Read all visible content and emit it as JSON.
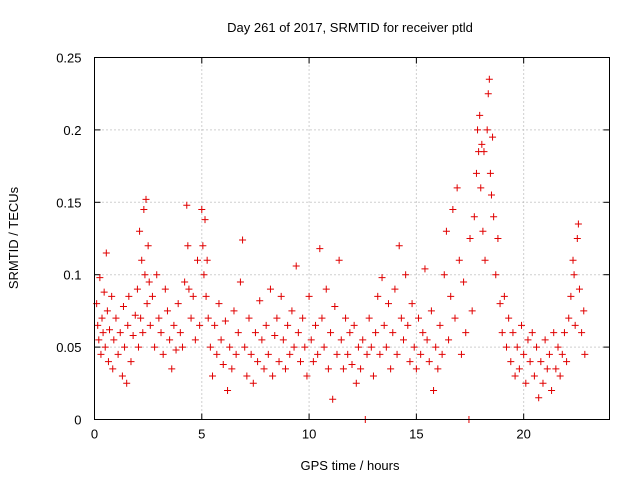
{
  "chart_data": {
    "type": "scatter",
    "title": "Day 261 of 2017, SRMTID for receiver ptld",
    "xlabel": "GPS time / hours",
    "ylabel": "SRMTID / TECUs",
    "xlim": [
      0,
      24
    ],
    "ylim": [
      0,
      0.25
    ],
    "xticks": [
      "0",
      "5",
      "10",
      "15",
      "20"
    ],
    "yticks": [
      "0",
      "0.05",
      "0.1",
      "0.15",
      "0.2",
      "0.25"
    ],
    "grid": true,
    "marker": "plus",
    "color": "#e00000",
    "series": [
      {
        "points": [
          [
            0.1,
            0.08
          ],
          [
            0.15,
            0.065
          ],
          [
            0.2,
            0.055
          ],
          [
            0.25,
            0.098
          ],
          [
            0.3,
            0.045
          ],
          [
            0.35,
            0.07
          ],
          [
            0.4,
            0.06
          ],
          [
            0.45,
            0.088
          ],
          [
            0.5,
            0.05
          ],
          [
            0.55,
            0.115
          ],
          [
            0.6,
            0.075
          ],
          [
            0.65,
            0.04
          ],
          [
            0.7,
            0.062
          ],
          [
            0.8,
            0.085
          ],
          [
            0.85,
            0.035
          ],
          [
            0.9,
            0.055
          ],
          [
            1.0,
            0.07
          ],
          [
            1.1,
            0.045
          ],
          [
            1.2,
            0.06
          ],
          [
            1.3,
            0.03
          ],
          [
            1.35,
            0.078
          ],
          [
            1.4,
            0.05
          ],
          [
            1.5,
            0.025
          ],
          [
            1.55,
            0.065
          ],
          [
            1.6,
            0.085
          ],
          [
            1.7,
            0.04
          ],
          [
            1.8,
            0.058
          ],
          [
            1.9,
            0.072
          ],
          [
            2.0,
            0.09
          ],
          [
            2.05,
            0.05
          ],
          [
            2.1,
            0.13
          ],
          [
            2.15,
            0.07
          ],
          [
            2.2,
            0.11
          ],
          [
            2.25,
            0.06
          ],
          [
            2.3,
            0.145
          ],
          [
            2.35,
            0.1
          ],
          [
            2.4,
            0.152
          ],
          [
            2.45,
            0.08
          ],
          [
            2.5,
            0.12
          ],
          [
            2.55,
            0.095
          ],
          [
            2.6,
            0.065
          ],
          [
            2.7,
            0.085
          ],
          [
            2.8,
            0.05
          ],
          [
            2.9,
            0.1
          ],
          [
            3.0,
            0.07
          ],
          [
            3.1,
            0.06
          ],
          [
            3.2,
            0.045
          ],
          [
            3.3,
            0.09
          ],
          [
            3.4,
            0.075
          ],
          [
            3.5,
            0.055
          ],
          [
            3.6,
            0.035
          ],
          [
            3.7,
            0.065
          ],
          [
            3.8,
            0.048
          ],
          [
            3.9,
            0.08
          ],
          [
            4.0,
            0.06
          ],
          [
            4.1,
            0.05
          ],
          [
            4.2,
            0.095
          ],
          [
            4.3,
            0.148
          ],
          [
            4.35,
            0.12
          ],
          [
            4.4,
            0.09
          ],
          [
            4.5,
            0.07
          ],
          [
            4.6,
            0.085
          ],
          [
            4.7,
            0.055
          ],
          [
            4.8,
            0.11
          ],
          [
            4.9,
            0.065
          ],
          [
            5.0,
            0.145
          ],
          [
            5.05,
            0.12
          ],
          [
            5.1,
            0.1
          ],
          [
            5.15,
            0.138
          ],
          [
            5.2,
            0.085
          ],
          [
            5.25,
            0.11
          ],
          [
            5.3,
            0.07
          ],
          [
            5.4,
            0.05
          ],
          [
            5.5,
            0.03
          ],
          [
            5.6,
            0.065
          ],
          [
            5.7,
            0.045
          ],
          [
            5.8,
            0.08
          ],
          [
            5.9,
            0.055
          ],
          [
            6.0,
            0.038
          ],
          [
            6.1,
            0.068
          ],
          [
            6.2,
            0.02
          ],
          [
            6.3,
            0.05
          ],
          [
            6.4,
            0.035
          ],
          [
            6.5,
            0.075
          ],
          [
            6.6,
            0.045
          ],
          [
            6.7,
            0.06
          ],
          [
            6.8,
            0.095
          ],
          [
            6.9,
            0.124
          ],
          [
            7.0,
            0.05
          ],
          [
            7.1,
            0.03
          ],
          [
            7.2,
            0.07
          ],
          [
            7.3,
            0.045
          ],
          [
            7.4,
            0.025
          ],
          [
            7.5,
            0.06
          ],
          [
            7.6,
            0.04
          ],
          [
            7.7,
            0.082
          ],
          [
            7.8,
            0.055
          ],
          [
            7.9,
            0.035
          ],
          [
            8.0,
            0.065
          ],
          [
            8.1,
            0.045
          ],
          [
            8.2,
            0.09
          ],
          [
            8.3,
            0.03
          ],
          [
            8.4,
            0.058
          ],
          [
            8.5,
            0.07
          ],
          [
            8.6,
            0.04
          ],
          [
            8.7,
            0.085
          ],
          [
            8.8,
            0.055
          ],
          [
            8.9,
            0.035
          ],
          [
            9.0,
            0.065
          ],
          [
            9.1,
            0.045
          ],
          [
            9.2,
            0.075
          ],
          [
            9.3,
            0.05
          ],
          [
            9.4,
            0.106
          ],
          [
            9.5,
            0.06
          ],
          [
            9.6,
            0.04
          ],
          [
            9.7,
            0.07
          ],
          [
            9.8,
            0.05
          ],
          [
            9.9,
            0.03
          ],
          [
            10.0,
            0.085
          ],
          [
            10.1,
            0.055
          ],
          [
            10.2,
            0.04
          ],
          [
            10.3,
            0.065
          ],
          [
            10.4,
            0.045
          ],
          [
            10.5,
            0.118
          ],
          [
            10.6,
            0.07
          ],
          [
            10.7,
            0.05
          ],
          [
            10.8,
            0.09
          ],
          [
            10.9,
            0.035
          ],
          [
            11.0,
            0.06
          ],
          [
            11.1,
            0.014
          ],
          [
            11.2,
            0.078
          ],
          [
            11.3,
            0.045
          ],
          [
            11.4,
            0.11
          ],
          [
            11.5,
            0.055
          ],
          [
            11.6,
            0.035
          ],
          [
            11.7,
            0.07
          ],
          [
            11.8,
            0.045
          ],
          [
            11.9,
            0.06
          ],
          [
            12.0,
            0.038
          ],
          [
            12.1,
            0.065
          ],
          [
            12.2,
            0.025
          ],
          [
            12.3,
            0.05
          ],
          [
            12.4,
            0.035
          ],
          [
            12.5,
            0.055
          ],
          [
            12.62,
            0.0
          ],
          [
            12.7,
            0.045
          ],
          [
            12.8,
            0.07
          ],
          [
            12.9,
            0.05
          ],
          [
            13.0,
            0.03
          ],
          [
            13.1,
            0.06
          ],
          [
            13.2,
            0.085
          ],
          [
            13.3,
            0.045
          ],
          [
            13.4,
            0.098
          ],
          [
            13.5,
            0.065
          ],
          [
            13.6,
            0.05
          ],
          [
            13.7,
            0.08
          ],
          [
            13.8,
            0.035
          ],
          [
            13.9,
            0.06
          ],
          [
            14.0,
            0.09
          ],
          [
            14.1,
            0.045
          ],
          [
            14.2,
            0.12
          ],
          [
            14.3,
            0.07
          ],
          [
            14.4,
            0.055
          ],
          [
            14.5,
            0.1
          ],
          [
            14.6,
            0.065
          ],
          [
            14.7,
            0.04
          ],
          [
            14.8,
            0.08
          ],
          [
            14.9,
            0.05
          ],
          [
            15.0,
            0.035
          ],
          [
            15.1,
            0.07
          ],
          [
            15.2,
            0.045
          ],
          [
            15.3,
            0.06
          ],
          [
            15.4,
            0.104
          ],
          [
            15.5,
            0.055
          ],
          [
            15.6,
            0.04
          ],
          [
            15.7,
            0.075
          ],
          [
            15.8,
            0.02
          ],
          [
            15.9,
            0.05
          ],
          [
            16.0,
            0.035
          ],
          [
            16.1,
            0.065
          ],
          [
            16.2,
            0.045
          ],
          [
            16.3,
            0.1
          ],
          [
            16.4,
            0.13
          ],
          [
            16.5,
            0.055
          ],
          [
            16.6,
            0.085
          ],
          [
            16.7,
            0.145
          ],
          [
            16.8,
            0.07
          ],
          [
            16.9,
            0.16
          ],
          [
            17.0,
            0.11
          ],
          [
            17.1,
            0.045
          ],
          [
            17.2,
            0.095
          ],
          [
            17.3,
            0.06
          ],
          [
            17.45,
            0.0
          ],
          [
            17.5,
            0.125
          ],
          [
            17.6,
            0.075
          ],
          [
            17.7,
            0.14
          ],
          [
            17.8,
            0.17
          ],
          [
            17.85,
            0.2
          ],
          [
            17.9,
            0.185
          ],
          [
            17.95,
            0.21
          ],
          [
            18.0,
            0.16
          ],
          [
            18.05,
            0.19
          ],
          [
            18.1,
            0.13
          ],
          [
            18.15,
            0.185
          ],
          [
            18.2,
            0.11
          ],
          [
            18.3,
            0.2
          ],
          [
            18.35,
            0.225
          ],
          [
            18.4,
            0.235
          ],
          [
            18.45,
            0.17
          ],
          [
            18.5,
            0.155
          ],
          [
            18.55,
            0.195
          ],
          [
            18.6,
            0.14
          ],
          [
            18.7,
            0.1
          ],
          [
            18.8,
            0.125
          ],
          [
            18.9,
            0.08
          ],
          [
            19.0,
            0.06
          ],
          [
            19.1,
            0.085
          ],
          [
            19.2,
            0.05
          ],
          [
            19.3,
            0.07
          ],
          [
            19.4,
            0.04
          ],
          [
            19.5,
            0.06
          ],
          [
            19.6,
            0.03
          ],
          [
            19.7,
            0.05
          ],
          [
            19.8,
            0.035
          ],
          [
            19.9,
            0.065
          ],
          [
            20.0,
            0.045
          ],
          [
            20.1,
            0.025
          ],
          [
            20.2,
            0.055
          ],
          [
            20.3,
            0.04
          ],
          [
            20.4,
            0.06
          ],
          [
            20.5,
            0.03
          ],
          [
            20.6,
            0.05
          ],
          [
            20.7,
            0.015
          ],
          [
            20.8,
            0.04
          ],
          [
            20.9,
            0.025
          ],
          [
            21.0,
            0.055
          ],
          [
            21.1,
            0.035
          ],
          [
            21.2,
            0.045
          ],
          [
            21.3,
            0.02
          ],
          [
            21.4,
            0.06
          ],
          [
            21.5,
            0.035
          ],
          [
            21.6,
            0.05
          ],
          [
            21.7,
            0.03
          ],
          [
            21.8,
            0.045
          ],
          [
            21.9,
            0.06
          ],
          [
            22.0,
            0.04
          ],
          [
            22.1,
            0.07
          ],
          [
            22.2,
            0.085
          ],
          [
            22.3,
            0.11
          ],
          [
            22.35,
            0.1
          ],
          [
            22.4,
            0.065
          ],
          [
            22.5,
            0.125
          ],
          [
            22.55,
            0.135
          ],
          [
            22.6,
            0.09
          ],
          [
            22.7,
            0.06
          ],
          [
            22.8,
            0.075
          ],
          [
            22.85,
            0.045
          ]
        ]
      }
    ]
  }
}
